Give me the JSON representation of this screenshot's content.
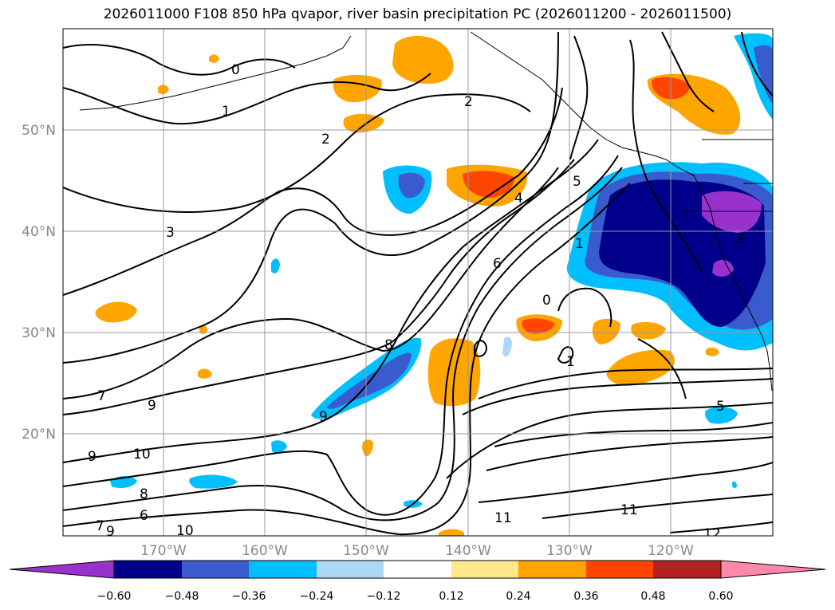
{
  "title": "2026011000 F108 850 hPa qvapor, river basin precipitation PC (2026011200 - 2026011500)",
  "colors": {
    "neg_lt_060": "#9932cc",
    "neg_048_060": "#00008b",
    "neg_036_048": "#3a5bcd",
    "neg_024_036": "#00bfff",
    "neg_012_024": "#add8f8",
    "neutral": "#ffffff",
    "pos_012_024": "#ffe88a",
    "pos_024_036": "#ffa500",
    "pos_036_048": "#ff4500",
    "pos_048_060": "#b22222",
    "pos_gt_060": "#ff88aa",
    "grid": "#999999",
    "contour": "#000000"
  },
  "lat_ticks": [
    "50°N",
    "40°N",
    "30°N",
    "20°N"
  ],
  "lon_ticks": [
    "170°W",
    "160°W",
    "150°W",
    "140°W",
    "130°W",
    "120°W"
  ],
  "colorbar": {
    "labels": [
      "−0.60",
      "−0.48",
      "−0.36",
      "−0.24",
      "−0.12",
      "0.12",
      "0.24",
      "0.36",
      "0.48",
      "0.60"
    ]
  },
  "contour_labels": [
    "0",
    "1",
    "2",
    "2",
    "3",
    "4",
    "5",
    "6",
    "7",
    "8",
    "9",
    "9",
    "9",
    "10",
    "10",
    "11",
    "11",
    "12",
    "0",
    "1",
    "1",
    "6",
    "7",
    "8",
    "9",
    "5",
    "3"
  ]
}
